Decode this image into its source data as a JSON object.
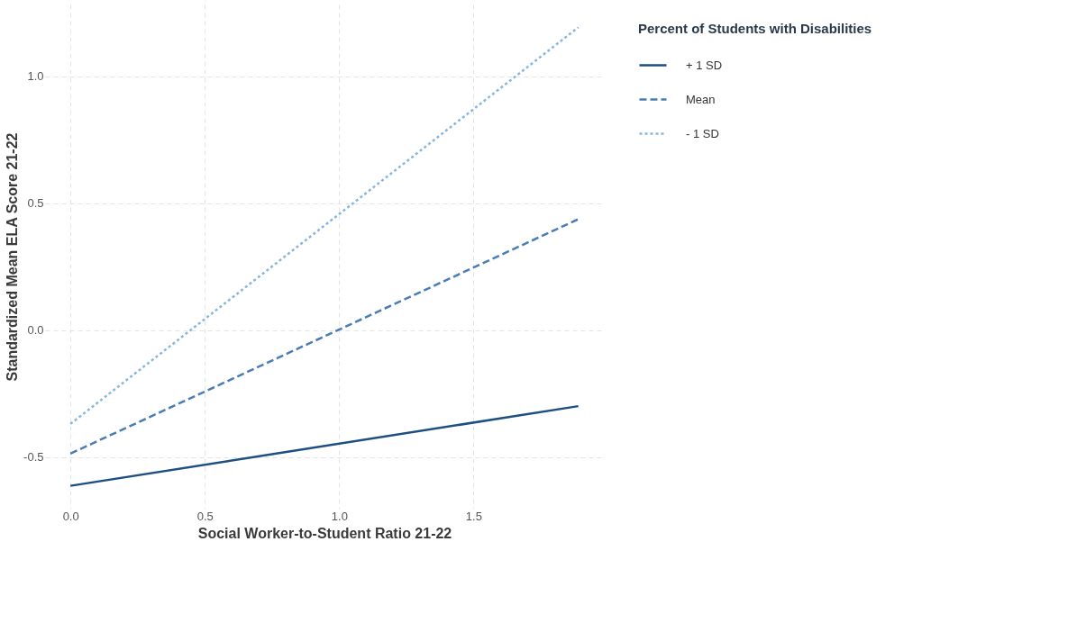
{
  "chart_data": {
    "type": "line",
    "xlabel": "Social Worker-to-Student Ratio 21-22",
    "ylabel": "Standardized Mean ELA Score 21-22",
    "legend_title": "Percent of Students with Disabilities",
    "x": [
      0,
      1.89
    ],
    "series": [
      {
        "name": "+ 1 SD",
        "color": "#1c4f82",
        "line_style": "solid",
        "values": [
          -0.614,
          -0.3
        ]
      },
      {
        "name": "Mean",
        "color": "#4a7db5",
        "line_style": "dashed",
        "values": [
          -0.487,
          0.437
        ]
      },
      {
        "name": "- 1 SD",
        "color": "#86b6e0",
        "line_style": "dotted",
        "values": [
          -0.37,
          1.193
        ]
      }
    ],
    "xlim": [
      -0.0945,
      1.985
    ],
    "ylim": [
      -0.704,
      1.283
    ],
    "xticks": [
      {
        "value": 0,
        "label": "0.0"
      },
      0.5,
      {
        "value": 1,
        "label": "1.0"
      },
      1.5
    ],
    "yticks": [
      {
        "value": -0.5,
        "label": "-0.5"
      },
      {
        "value": 0,
        "label": "0.0"
      },
      {
        "value": 0.5,
        "label": "0.5"
      },
      {
        "value": 1,
        "label": "1.0"
      }
    ],
    "grid": true,
    "legend": "right"
  }
}
